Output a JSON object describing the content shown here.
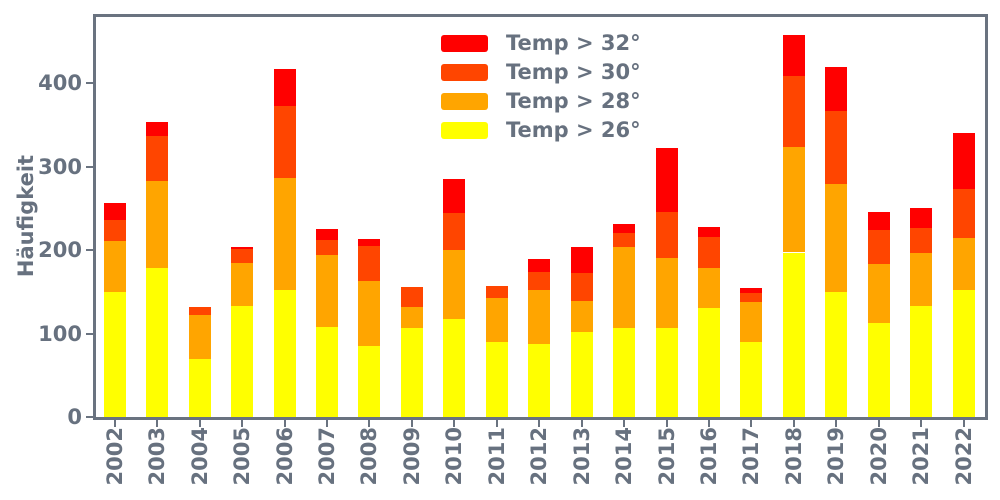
{
  "chart_data": {
    "type": "bar",
    "stacked": true,
    "title": "",
    "xlabel": "",
    "ylabel": "Häufigkeit",
    "ylim": [
      0,
      479
    ],
    "yticks": [
      0,
      100,
      200,
      300,
      400
    ],
    "grid": false,
    "legend_position": "upper center, inside axes, no frame",
    "categories": [
      "2002",
      "2003",
      "2004",
      "2005",
      "2006",
      "2007",
      "2008",
      "2009",
      "2010",
      "2011",
      "2012",
      "2013",
      "2014",
      "2015",
      "2016",
      "2017",
      "2018",
      "2019",
      "2020",
      "2021",
      "2022"
    ],
    "series": [
      {
        "name": "Temp > 26°",
        "color": "#ffff00",
        "values": [
          150,
          178,
          69,
          133,
          152,
          108,
          85,
          106,
          117,
          90,
          87,
          102,
          106,
          107,
          131,
          90,
          197,
          150,
          113,
          133,
          152
        ]
      },
      {
        "name": "Temp > 28°",
        "color": "#ffa500",
        "values": [
          61,
          105,
          53,
          52,
          134,
          86,
          78,
          26,
          83,
          53,
          65,
          37,
          97,
          83,
          47,
          48,
          126,
          129,
          70,
          63,
          62
        ]
      },
      {
        "name": "Temp > 30°",
        "color": "#ff4500",
        "values": [
          25,
          53,
          10,
          16,
          86,
          18,
          42,
          24,
          44,
          14,
          22,
          34,
          17,
          55,
          37,
          11,
          85,
          88,
          41,
          30,
          59
        ]
      },
      {
        "name": "Temp > 32°",
        "color": "#ff0000",
        "values": [
          20,
          17,
          0,
          2,
          45,
          13,
          8,
          0,
          41,
          0,
          15,
          30,
          11,
          77,
          12,
          6,
          50,
          52,
          22,
          24,
          67
        ]
      }
    ],
    "totals": [
      256,
      353,
      132,
      203,
      417,
      225,
      213,
      156,
      285,
      157,
      189,
      203,
      231,
      322,
      227,
      155,
      458,
      419,
      246,
      250,
      340
    ],
    "legend": [
      {
        "label": "Temp > 32°",
        "color": "#ff0000"
      },
      {
        "label": "Temp > 30°",
        "color": "#ff4500"
      },
      {
        "label": "Temp > 28°",
        "color": "#ffa500"
      },
      {
        "label": "Temp > 26°",
        "color": "#ffff00"
      }
    ],
    "colors": {
      "text": "#67717f",
      "spine": "#6a7380",
      "background": "#ffffff"
    }
  }
}
